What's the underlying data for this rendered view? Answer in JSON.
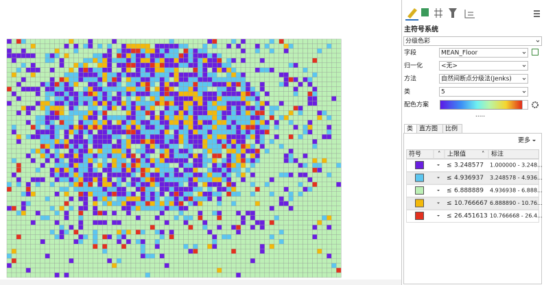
{
  "pane": {
    "title": "主符号系统",
    "renderer": "分级色彩",
    "fields": [
      {
        "label": "字段",
        "value": "MEAN_Floor"
      },
      {
        "label": "归一化",
        "value": "<无>"
      },
      {
        "label": "方法",
        "value": "自然间断点分级法(Jenks)"
      },
      {
        "label": "类",
        "value": "5"
      },
      {
        "label": "配色方案"
      }
    ],
    "tabs": [
      "类",
      "直方图",
      "比例"
    ],
    "more": "更多",
    "table": {
      "headers": [
        "符号",
        "上限值",
        "标注"
      ],
      "rows": [
        {
          "color": "#6a1fe0",
          "op": "≤",
          "upper": "3.248577",
          "label": "1.000000 - 3.248..."
        },
        {
          "color": "#5cc6f0",
          "op": "≤",
          "upper": "4.936937",
          "label": "3.248578 - 4.936..."
        },
        {
          "color": "#bdf0b6",
          "op": "≤",
          "upper": "6.888889",
          "label": "4.936938 - 6.888..."
        },
        {
          "color": "#f3b90a",
          "op": "≤",
          "upper": "10.766667",
          "label": "6.888890 - 10.76..."
        },
        {
          "color": "#e3311f",
          "op": "≤",
          "upper": "26.451613",
          "label": "10.766668 - 26.4..."
        }
      ]
    }
  }
}
